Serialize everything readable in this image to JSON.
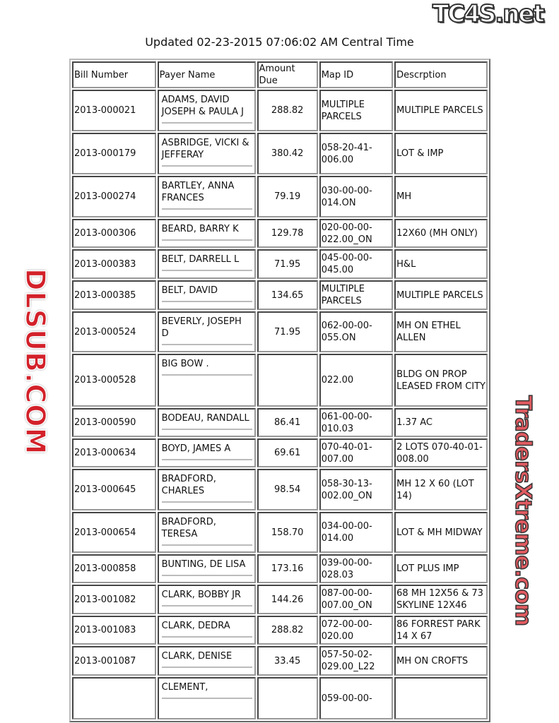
{
  "header": {
    "updated": "Updated 02-23-2015 07:06:02 AM Central Time"
  },
  "watermarks": {
    "top_right": "TC4S.net",
    "center": "DLSUB.COM",
    "bottom_right": "TradersXtreme.com"
  },
  "table": {
    "columns": [
      "Bill Number",
      "Payer Name",
      "Amount Due",
      "Map ID",
      "Descrption"
    ],
    "rows": [
      {
        "bill": "2013-000021",
        "payer": "ADAMS, DAVID JOSEPH & PAULA J",
        "amount": "288.82",
        "map": "MULTIPLE PARCELS",
        "desc": "MULTIPLE PARCELS"
      },
      {
        "bill": "2013-000179",
        "payer": "ASBRIDGE, VICKI & JEFFERAY",
        "amount": "380.42",
        "map": "058-20-41-006.00",
        "desc": "LOT & IMP"
      },
      {
        "bill": "2013-000274",
        "payer": "BARTLEY, ANNA FRANCES",
        "amount": "79.19",
        "map": "030-00-00-014.ON",
        "desc": "MH"
      },
      {
        "bill": "2013-000306",
        "payer": "BEARD, BARRY K",
        "amount": "129.78",
        "map": "020-00-00-022.00_ON",
        "desc": "12X60 (MH ONLY)"
      },
      {
        "bill": "2013-000383",
        "payer": "BELT, DARRELL L",
        "amount": "71.95",
        "map": "045-00-00-045.00",
        "desc": "H&L"
      },
      {
        "bill": "2013-000385",
        "payer": "BELT, DAVID",
        "amount": "134.65",
        "map": "MULTIPLE PARCELS",
        "desc": "MULTIPLE PARCELS"
      },
      {
        "bill": "2013-000524",
        "payer": "BEVERLY, JOSEPH D",
        "amount": "71.95",
        "map": "062-00-00-055.ON",
        "desc": "MH ON ETHEL ALLEN"
      },
      {
        "bill": "2013-000528",
        "payer": "BIG BOW .",
        "amount": "",
        "map": "022.00",
        "desc": "BLDG ON PROP LEASED FROM CITY"
      },
      {
        "bill": "2013-000590",
        "payer": "BODEAU, RANDALL",
        "amount": "86.41",
        "map": "061-00-00-010.03",
        "desc": "1.37 AC"
      },
      {
        "bill": "2013-000634",
        "payer": "BOYD, JAMES A",
        "amount": "69.61",
        "map": "070-40-01-007.00",
        "desc": "2 LOTS 070-40-01-008.00"
      },
      {
        "bill": "2013-000645",
        "payer": "BRADFORD, CHARLES",
        "amount": "98.54",
        "map": "058-30-13-002.00_ON",
        "desc": "MH 12 X 60 (LOT 14)"
      },
      {
        "bill": "2013-000654",
        "payer": "BRADFORD, TERESA",
        "amount": "158.70",
        "map": "034-00-00-014.00",
        "desc": "LOT & MH MIDWAY"
      },
      {
        "bill": "2013-000858",
        "payer": "BUNTING, DE LISA",
        "amount": "173.16",
        "map": "039-00-00-028.03",
        "desc": "LOT PLUS IMP"
      },
      {
        "bill": "2013-001082",
        "payer": "CLARK, BOBBY JR",
        "amount": "144.26",
        "map": "087-00-00-007.00_ON",
        "desc": "68 MH 12X56 & 73 SKYLINE 12X46"
      },
      {
        "bill": "2013-001083",
        "payer": "CLARK, DEDRA",
        "amount": "288.82",
        "map": "072-00-00-020.00",
        "desc": "86 FORREST PARK 14 X 67"
      },
      {
        "bill": "2013-001087",
        "payer": "CLARK, DENISE",
        "amount": "33.45",
        "map": "057-50-02-029.00_L22",
        "desc": "MH ON CROFTS"
      },
      {
        "bill": "",
        "payer": "CLEMENT,",
        "amount": "",
        "map": "059-00-00-",
        "desc": ""
      }
    ]
  }
}
